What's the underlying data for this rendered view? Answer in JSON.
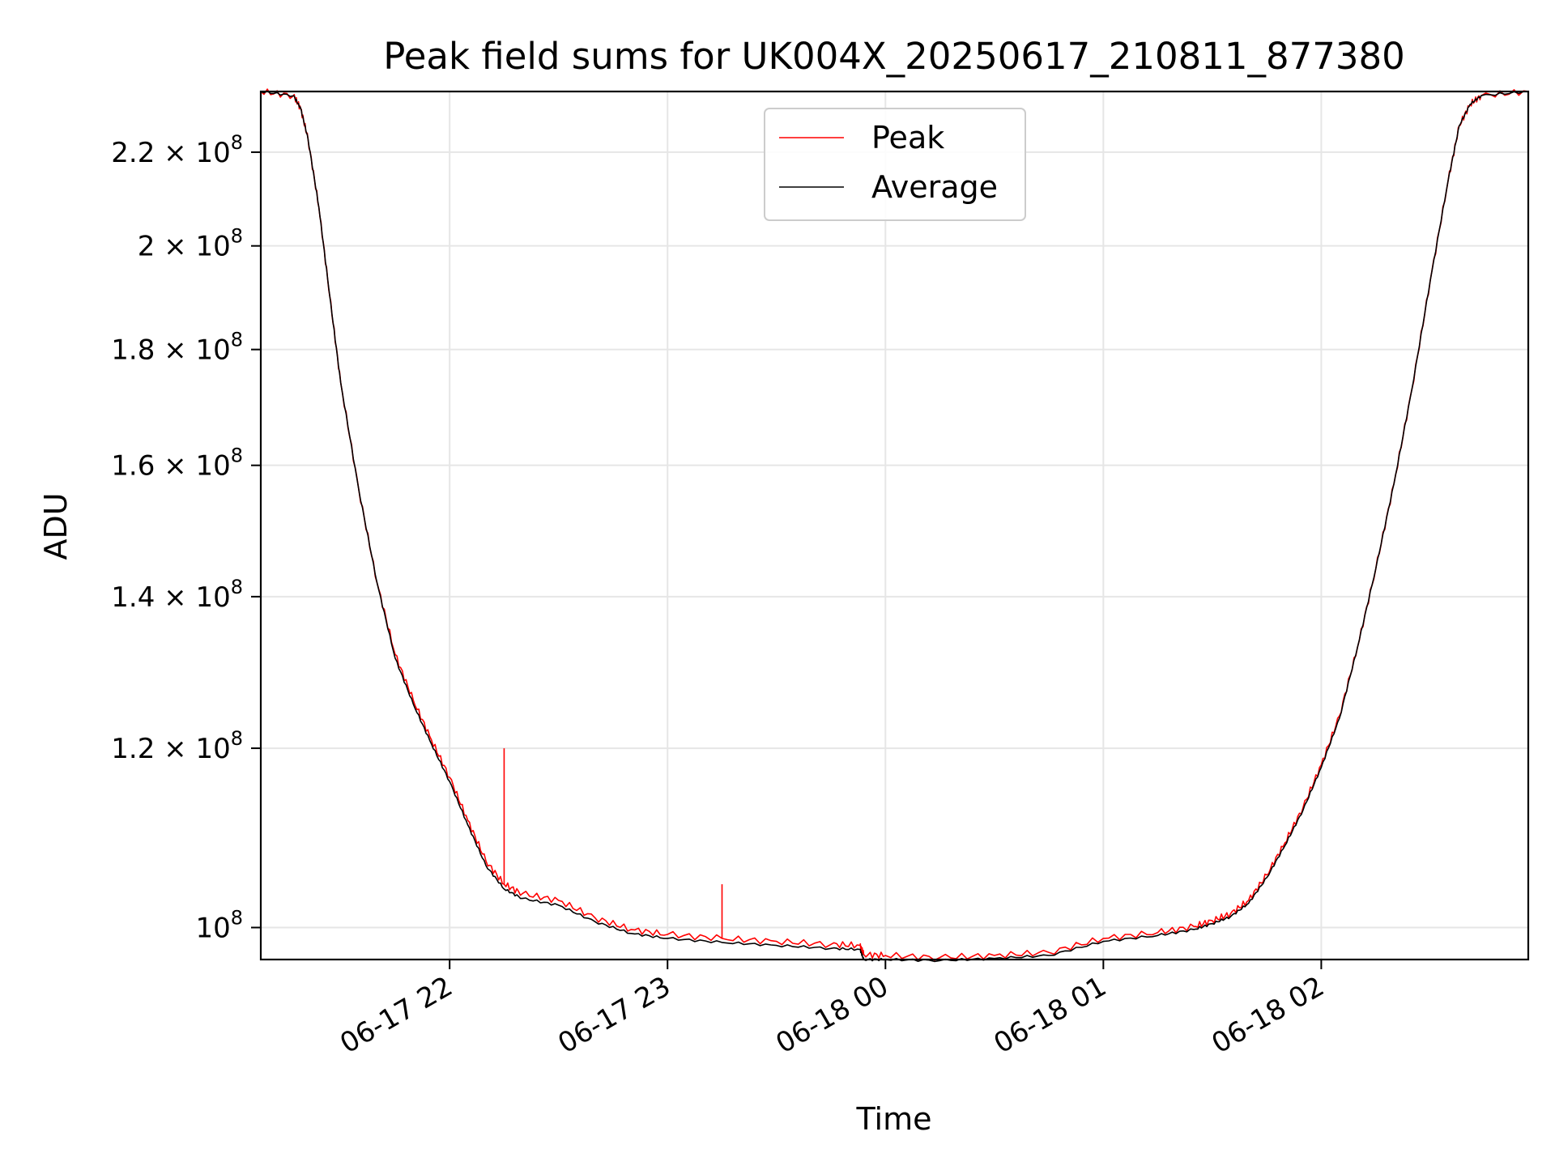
{
  "chart_data": {
    "type": "line",
    "title": "Peak field sums for UK004X_20250617_210811_877380",
    "xlabel": "Time",
    "ylabel": "ADU",
    "yscale": "log",
    "grid": true,
    "legend_placement": "upper center",
    "xlim": [
      "2025-06-17 21:08",
      "2025-06-18 02:57"
    ],
    "ylim": [
      96800000,
      234000000
    ],
    "x_ticks": [
      {
        "value": "2025-06-17 22:00",
        "label": "06-17 22"
      },
      {
        "value": "2025-06-17 23:00",
        "label": "06-17 23"
      },
      {
        "value": "2025-06-18 00:00",
        "label": "06-18 00"
      },
      {
        "value": "2025-06-18 01:00",
        "label": "06-18 01"
      },
      {
        "value": "2025-06-18 02:00",
        "label": "06-18 02"
      }
    ],
    "y_ticks": [
      {
        "value": 100000000,
        "mantissa": "",
        "exp": "8"
      },
      {
        "value": 120000000,
        "mantissa": "1.2",
        "exp": "8"
      },
      {
        "value": 140000000,
        "mantissa": "1.4",
        "exp": "8"
      },
      {
        "value": 160000000,
        "mantissa": "1.6",
        "exp": "8"
      },
      {
        "value": 180000000,
        "mantissa": "1.8",
        "exp": "8"
      },
      {
        "value": 200000000,
        "mantissa": "2",
        "exp": "8"
      },
      {
        "value": 220000000,
        "mantissa": "2.2",
        "exp": "8"
      }
    ],
    "series": [
      {
        "name": "Peak",
        "color": "#ff0000",
        "x": [
          "2025-06-17 21:08",
          "2025-06-17 21:17",
          "2025-06-17 21:19",
          "2025-06-17 21:21",
          "2025-06-17 21:24",
          "2025-06-17 21:27",
          "2025-06-17 21:30",
          "2025-06-17 21:35",
          "2025-06-17 21:40",
          "2025-06-17 21:45",
          "2025-06-17 21:50",
          "2025-06-17 21:55",
          "2025-06-17 22:00",
          "2025-06-17 22:05",
          "2025-06-17 22:10",
          "2025-06-17 22:15",
          "2025-06-17 22:20",
          "2025-06-17 22:30",
          "2025-06-17 22:40",
          "2025-06-17 22:50",
          "2025-06-17 23:00",
          "2025-06-17 23:15",
          "2025-06-17 23:30",
          "2025-06-17 23:45",
          "2025-06-17 23:53",
          "2025-06-17 23:54",
          "2025-06-18 00:00",
          "2025-06-18 00:15",
          "2025-06-18 00:30",
          "2025-06-18 00:45",
          "2025-06-18 01:00",
          "2025-06-18 01:15",
          "2025-06-18 01:25",
          "2025-06-18 01:30",
          "2025-06-18 01:35",
          "2025-06-18 01:40",
          "2025-06-18 01:45",
          "2025-06-18 01:50",
          "2025-06-18 01:55",
          "2025-06-18 02:00",
          "2025-06-18 02:05",
          "2025-06-18 02:10",
          "2025-06-18 02:15",
          "2025-06-18 02:20",
          "2025-06-18 02:25",
          "2025-06-18 02:30",
          "2025-06-18 02:35",
          "2025-06-18 02:38",
          "2025-06-18 02:41",
          "2025-06-18 02:44",
          "2025-06-18 02:57"
        ],
        "values": [
          234000000,
          233000000,
          230000000,
          223000000,
          208000000,
          190000000,
          174000000,
          156000000,
          142000000,
          132000000,
          126000000,
          121000000,
          116500000,
          111500000,
          107000000,
          104500000,
          103500000,
          102800000,
          101000000,
          99800000,
          99300000,
          98900000,
          98600000,
          98300000,
          98200000,
          97300000,
          97200000,
          97000000,
          97200000,
          97500000,
          98900000,
          99500000,
          100100000,
          100700000,
          101400000,
          102800000,
          105500000,
          109000000,
          113000000,
          118000000,
          124000000,
          133000000,
          144000000,
          157000000,
          173000000,
          193000000,
          214000000,
          226000000,
          231000000,
          233000000,
          234000000
        ],
        "spikes": [
          {
            "x": "2025-06-17 22:15",
            "value": 120000000
          },
          {
            "x": "2025-06-17 23:15",
            "value": 104500000
          }
        ]
      },
      {
        "name": "Average",
        "color": "#000000",
        "x": [
          "2025-06-17 21:08",
          "2025-06-17 21:17",
          "2025-06-17 21:19",
          "2025-06-17 21:21",
          "2025-06-17 21:24",
          "2025-06-17 21:27",
          "2025-06-17 21:30",
          "2025-06-17 21:35",
          "2025-06-17 21:40",
          "2025-06-17 21:45",
          "2025-06-17 21:50",
          "2025-06-17 21:55",
          "2025-06-17 22:00",
          "2025-06-17 22:05",
          "2025-06-17 22:10",
          "2025-06-17 22:15",
          "2025-06-17 22:20",
          "2025-06-17 22:30",
          "2025-06-17 22:40",
          "2025-06-17 22:50",
          "2025-06-17 23:00",
          "2025-06-17 23:15",
          "2025-06-17 23:30",
          "2025-06-17 23:45",
          "2025-06-17 23:53",
          "2025-06-17 23:54",
          "2025-06-18 00:00",
          "2025-06-18 00:15",
          "2025-06-18 00:30",
          "2025-06-18 00:45",
          "2025-06-18 01:00",
          "2025-06-18 01:15",
          "2025-06-18 01:25",
          "2025-06-18 01:30",
          "2025-06-18 01:35",
          "2025-06-18 01:40",
          "2025-06-18 01:45",
          "2025-06-18 01:50",
          "2025-06-18 01:55",
          "2025-06-18 02:00",
          "2025-06-18 02:05",
          "2025-06-18 02:10",
          "2025-06-18 02:15",
          "2025-06-18 02:20",
          "2025-06-18 02:25",
          "2025-06-18 02:30",
          "2025-06-18 02:35",
          "2025-06-18 02:38",
          "2025-06-18 02:41",
          "2025-06-18 02:44",
          "2025-06-18 02:57"
        ],
        "values": [
          234000000,
          233000000,
          230000000,
          223000000,
          208000000,
          190000000,
          174000000,
          156000000,
          142000000,
          131500000,
          125500000,
          120500000,
          116000000,
          111000000,
          106500000,
          104000000,
          103000000,
          102300000,
          100600000,
          99400000,
          98900000,
          98500000,
          98200000,
          97900000,
          97800000,
          96800000,
          96800000,
          96700000,
          96900000,
          97200000,
          98600000,
          99200000,
          99800000,
          100400000,
          101100000,
          102500000,
          105200000,
          108700000,
          112700000,
          117700000,
          123700000,
          133000000,
          144000000,
          157000000,
          173000000,
          193000000,
          214000000,
          226000000,
          231000000,
          233000000,
          234000000
        ]
      }
    ]
  }
}
